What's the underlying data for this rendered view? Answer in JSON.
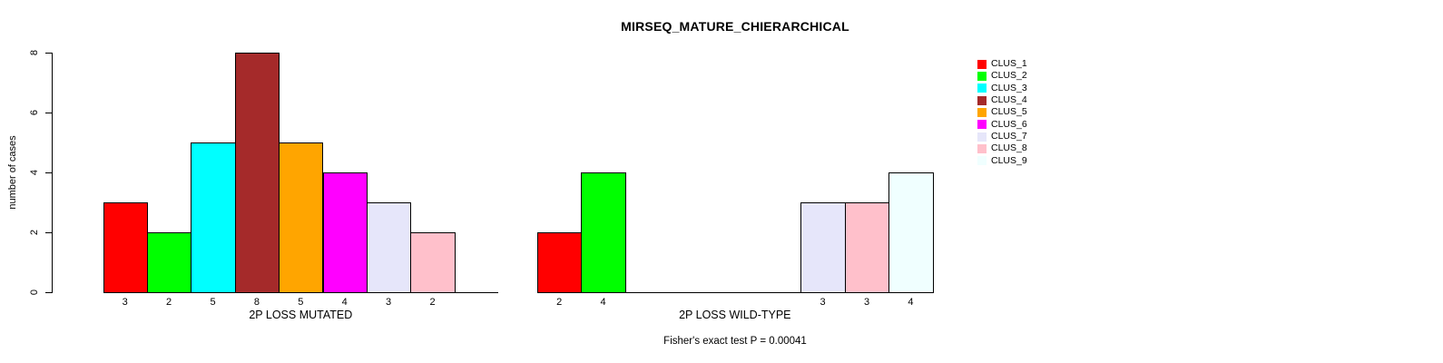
{
  "title": "MIRSEQ_MATURE_CHIERARCHICAL",
  "annotation": "Fisher's exact test P = 0.00041",
  "y_axis": {
    "label": "number of cases",
    "ticks": [
      "0",
      "2",
      "4",
      "6",
      "8"
    ]
  },
  "legend": {
    "items": [
      {
        "label": "CLUS_1",
        "color": "#FF0000"
      },
      {
        "label": "CLUS_2",
        "color": "#00FF00"
      },
      {
        "label": "CLUS_3",
        "color": "#00FFFF"
      },
      {
        "label": "CLUS_4",
        "color": "#A52A2A"
      },
      {
        "label": "CLUS_5",
        "color": "#FFA500"
      },
      {
        "label": "CLUS_6",
        "color": "#FF00FF"
      },
      {
        "label": "CLUS_7",
        "color": "#E6E6FA"
      },
      {
        "label": "CLUS_8",
        "color": "#FFC0CB"
      },
      {
        "label": "CLUS_9",
        "color": "#F0FFFF"
      }
    ]
  },
  "chart_data": {
    "type": "bar",
    "title": "MIRSEQ_MATURE_CHIERARCHICAL",
    "ylabel": "number of cases",
    "ylim": [
      0,
      8
    ],
    "yticks": [
      0,
      2,
      4,
      6,
      8
    ],
    "grid": false,
    "legend_position": "right",
    "categories": [
      "CLUS_1",
      "CLUS_2",
      "CLUS_3",
      "CLUS_4",
      "CLUS_5",
      "CLUS_6",
      "CLUS_7",
      "CLUS_8",
      "CLUS_9"
    ],
    "colors": [
      "#FF0000",
      "#00FF00",
      "#00FFFF",
      "#A52A2A",
      "#FFA500",
      "#FF00FF",
      "#E6E6FA",
      "#FFC0CB",
      "#F0FFFF"
    ],
    "series": [
      {
        "name": "2P LOSS MUTATED",
        "values": [
          3,
          2,
          5,
          8,
          5,
          4,
          3,
          2,
          0
        ]
      },
      {
        "name": "2P LOSS WILD-TYPE",
        "values": [
          2,
          4,
          0,
          0,
          0,
          0,
          3,
          3,
          4
        ]
      }
    ],
    "bar_value_labels": true,
    "annotation": "Fisher's exact test P = 0.00041",
    "bar_border_color": "#000000"
  }
}
